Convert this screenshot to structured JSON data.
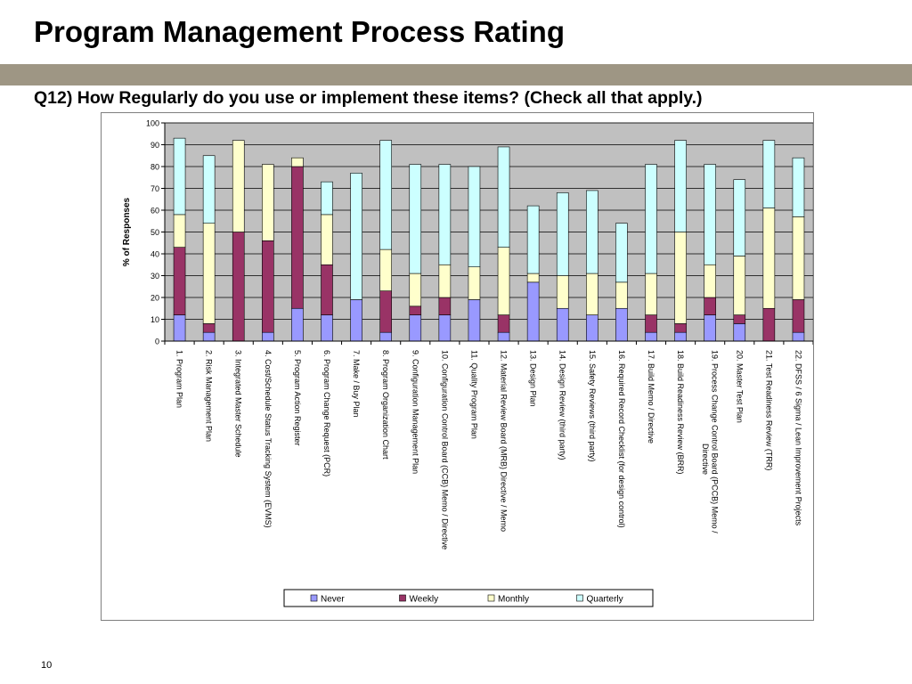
{
  "slide": {
    "title": "Program Management Process Rating",
    "question": "Q12) How Regularly do you use or implement these items? (Check all that apply.)",
    "page_number": "10"
  },
  "chart_data": {
    "type": "bar",
    "stacked": true,
    "title": "",
    "xlabel": "",
    "ylabel": "% of Responses",
    "ylim": [
      0,
      100
    ],
    "yticks": [
      0,
      10,
      20,
      30,
      40,
      50,
      60,
      70,
      80,
      90,
      100
    ],
    "grid": true,
    "legend": "bottom",
    "plot_background": "#c0c0c0",
    "categories": [
      [
        "1. Program Plan"
      ],
      [
        "2. Risk Management Plan"
      ],
      [
        "3. Integrated Master Schedule"
      ],
      [
        "4. Cost/Schedule Status  Tracking System (EVMS)"
      ],
      [
        "5. Program Action Register"
      ],
      [
        "6. Program Change Request (PCR)"
      ],
      [
        "7. Make / Buy Plan"
      ],
      [
        "8. Program Organization Chart"
      ],
      [
        "9. Configuration Management Plan"
      ],
      [
        "10. Configuration Control Board (CCB) Memo  / Directive"
      ],
      [
        "11. Quality Program Plan"
      ],
      [
        "12. Material Review Board (MRB) Directive / Memo"
      ],
      [
        "13. Design Plan"
      ],
      [
        "14. Design Review (third party)"
      ],
      [
        "15. Safety Reviews (third party)"
      ],
      [
        "16. Required Record Checklist (for design control)"
      ],
      [
        "17. Build Memo / Directive"
      ],
      [
        "18. Build Readiness Review (BRR)"
      ],
      [
        "19. Process Change Control Board (PCCB) Memo /",
        "Directive"
      ],
      [
        "20. Master Test Plan"
      ],
      [
        "21. Test Readiness Review (TRR)"
      ],
      [
        "22. DFSS / 6 Sigma / Lean Improvement Projects"
      ]
    ],
    "series": [
      {
        "name": "Never",
        "color": "#9999ff",
        "values": [
          12,
          4,
          0,
          4,
          15,
          12,
          19,
          4,
          12,
          12,
          19,
          4,
          27,
          15,
          12,
          15,
          4,
          4,
          12,
          8,
          0,
          4
        ]
      },
      {
        "name": "Weekly",
        "color": "#993366",
        "values": [
          31,
          4,
          50,
          42,
          65,
          23,
          0,
          19,
          4,
          8,
          0,
          8,
          0,
          0,
          0,
          0,
          8,
          4,
          8,
          4,
          15,
          15
        ]
      },
      {
        "name": "Monthly",
        "color": "#ffffcc",
        "values": [
          15,
          46,
          42,
          35,
          4,
          23,
          0,
          19,
          15,
          15,
          15,
          31,
          4,
          15,
          19,
          12,
          19,
          42,
          15,
          27,
          46,
          38
        ]
      },
      {
        "name": "Quarterly",
        "color": "#ccffff",
        "values": [
          35,
          31,
          0,
          0,
          0,
          15,
          58,
          50,
          50,
          46,
          46,
          46,
          31,
          38,
          38,
          27,
          50,
          42,
          46,
          35,
          31,
          27
        ]
      }
    ]
  }
}
